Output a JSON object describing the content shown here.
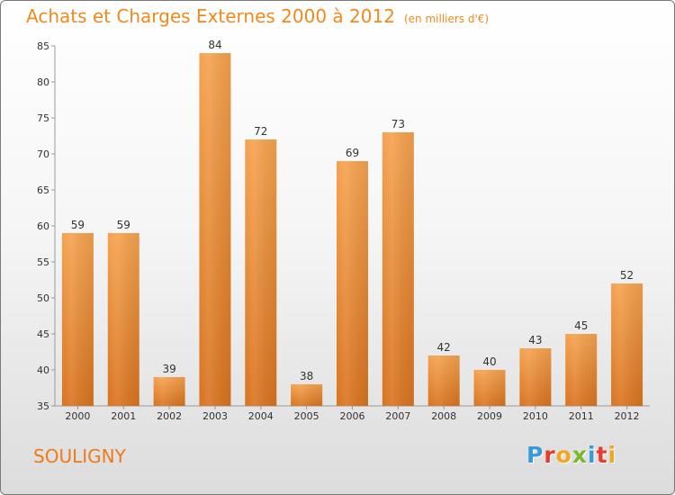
{
  "header": {
    "title": "Achats et Charges Externes 2000 à 2012",
    "subtitle": "(en milliers d'€)"
  },
  "footer": {
    "commune": "SOULIGNY",
    "logo_letters": [
      "P",
      "r",
      "o",
      "x",
      "i",
      "t",
      "i"
    ]
  },
  "colors": {
    "bar_top": "#f5a24f",
    "bar_bottom": "#d8731f",
    "title": "#f08a1c",
    "logo": [
      "#3a9ad9",
      "#e63b2e",
      "#f3a61f",
      "#7ab929",
      "#3a9ad9",
      "#e63b2e",
      "#f3a61f"
    ]
  },
  "chart_data": {
    "type": "bar",
    "title": "Achats et Charges Externes 2000 à 2012",
    "categories": [
      "2000",
      "2001",
      "2002",
      "2003",
      "2004",
      "2005",
      "2006",
      "2007",
      "2008",
      "2009",
      "2010",
      "2011",
      "2012"
    ],
    "values": [
      59,
      59,
      39,
      84,
      72,
      38,
      69,
      73,
      42,
      40,
      43,
      45,
      52
    ],
    "ylim": [
      35,
      85
    ],
    "yticks": [
      35,
      40,
      45,
      50,
      55,
      60,
      65,
      70,
      75,
      80,
      85
    ],
    "grid": false,
    "legend": "none"
  }
}
